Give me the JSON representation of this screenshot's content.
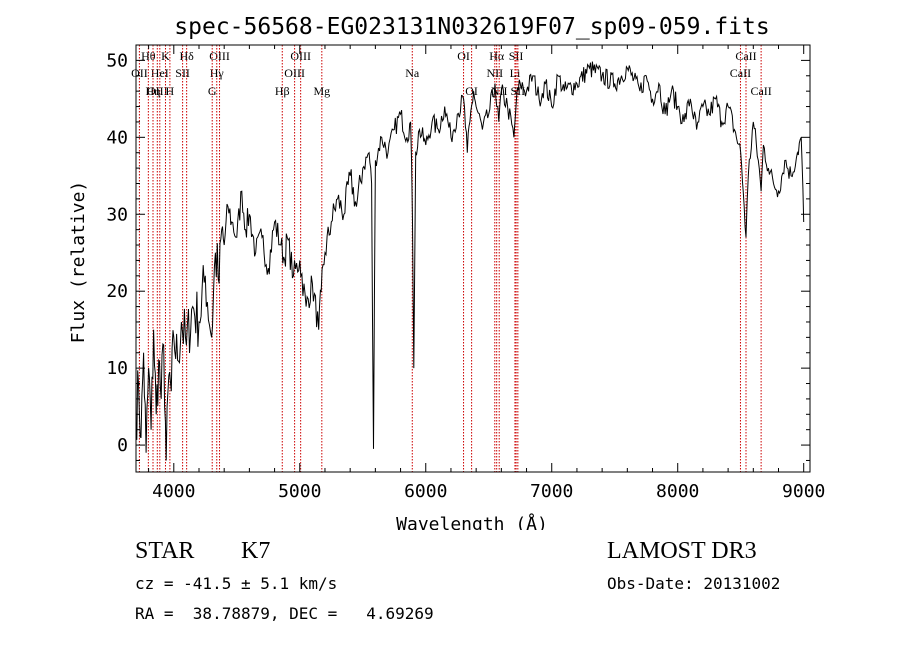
{
  "chart_data": {
    "type": "line",
    "title": "spec-56568-EG023131N032619F07_sp09-059.fits",
    "xlabel": "Wavelength (Å)",
    "ylabel": "Flux (relative)",
    "xlim": [
      3700,
      9050
    ],
    "ylim": [
      -3.5,
      52
    ],
    "xticks": [
      4000,
      5000,
      6000,
      7000,
      8000,
      9000
    ],
    "yticks": [
      0,
      10,
      20,
      30,
      40,
      50
    ],
    "grid": false,
    "series": [
      {
        "name": "spectrum",
        "x": [
          3700,
          3720,
          3740,
          3760,
          3780,
          3800,
          3820,
          3840,
          3860,
          3880,
          3900,
          3920,
          3940,
          3960,
          3980,
          4000,
          4030,
          4060,
          4100,
          4150,
          4200,
          4250,
          4300,
          4330,
          4360,
          4380,
          4400,
          4430,
          4460,
          4500,
          4540,
          4570,
          4600,
          4650,
          4700,
          4750,
          4800,
          4850,
          4880,
          4900,
          4950,
          5000,
          5050,
          5100,
          5150,
          5170,
          5200,
          5250,
          5300,
          5350,
          5400,
          5450,
          5500,
          5550,
          5570,
          5585,
          5600,
          5650,
          5700,
          5750,
          5800,
          5850,
          5880,
          5895,
          5905,
          5920,
          5950,
          6000,
          6050,
          6100,
          6150,
          6200,
          6250,
          6300,
          6330,
          6350,
          6380,
          6400,
          6450,
          6500,
          6550,
          6563,
          6580,
          6600,
          6650,
          6700,
          6720,
          6750,
          6800,
          6850,
          6900,
          6950,
          7000,
          7050,
          7100,
          7200,
          7300,
          7400,
          7500,
          7600,
          7700,
          7750,
          7800,
          7850,
          7900,
          7950,
          8000,
          8050,
          8100,
          8150,
          8200,
          8250,
          8300,
          8350,
          8400,
          8450,
          8500,
          8520,
          8542,
          8560,
          8600,
          8640,
          8662,
          8680,
          8720,
          8760,
          8800,
          8850,
          8900,
          8950,
          8980,
          9000
        ],
        "y": [
          3,
          8,
          1,
          12,
          -1,
          10,
          2,
          15,
          4,
          11,
          6,
          13,
          -2,
          9,
          7,
          14,
          11,
          16,
          13,
          18,
          16,
          22,
          14,
          25,
          21,
          28,
          26,
          31,
          29,
          27,
          33,
          28,
          30,
          25,
          27,
          23,
          29,
          26,
          24,
          27,
          22,
          24,
          18,
          21,
          15,
          20,
          25,
          29,
          32,
          30,
          35,
          31,
          36,
          38,
          34,
          -0.5,
          37,
          40,
          38,
          41,
          43,
          40,
          42,
          29,
          10,
          38,
          41,
          39,
          42,
          41,
          44,
          40,
          43,
          45,
          38,
          42,
          46,
          44,
          41,
          43,
          47,
          44,
          42,
          46,
          44,
          40,
          45,
          47,
          46,
          48,
          45,
          47,
          44,
          48,
          46,
          47,
          49,
          48,
          47,
          49,
          46,
          48,
          45,
          47,
          43,
          46,
          44,
          42,
          45,
          41,
          44,
          43,
          45,
          42,
          44,
          41,
          38,
          33,
          27,
          35,
          42,
          37,
          33,
          39,
          36,
          34,
          33,
          37,
          35,
          38,
          40,
          29
        ]
      }
    ],
    "line_markers": [
      {
        "label": "Hθ",
        "wavelength": 3798,
        "row": 1
      },
      {
        "label": "OII",
        "wavelength": 3727,
        "row": 2
      },
      {
        "label": "OIII",
        "wavelength": 3869,
        "row": 3
      },
      {
        "label": "K",
        "wavelength": 3934,
        "row": 1
      },
      {
        "label": "HeI",
        "wavelength": 3889,
        "row": 2
      },
      {
        "label": "Hη",
        "wavelength": 3835,
        "row": 3
      },
      {
        "label": "Hδ",
        "wavelength": 4102,
        "row": 1
      },
      {
        "label": "SII",
        "wavelength": 4070,
        "row": 2
      },
      {
        "label": "H",
        "wavelength": 3969,
        "row": 3
      },
      {
        "label": "OIII",
        "wavelength": 4363,
        "row": 1
      },
      {
        "label": "Hγ",
        "wavelength": 4341,
        "row": 2
      },
      {
        "label": "G",
        "wavelength": 4305,
        "row": 3
      },
      {
        "label": "OIII",
        "wavelength": 5007,
        "row": 1
      },
      {
        "label": "OIII",
        "wavelength": 4959,
        "row": 2
      },
      {
        "label": "Hβ",
        "wavelength": 4861,
        "row": 3
      },
      {
        "label": "Mg",
        "wavelength": 5175,
        "row": 3
      },
      {
        "label": "Na",
        "wavelength": 5893,
        "row": 2
      },
      {
        "label": "OI",
        "wavelength": 6300,
        "row": 1
      },
      {
        "label": "OI",
        "wavelength": 6364,
        "row": 3
      },
      {
        "label": "Hα",
        "wavelength": 6563,
        "row": 1
      },
      {
        "label": "SII",
        "wavelength": 6717,
        "row": 1
      },
      {
        "label": "NII",
        "wavelength": 6548,
        "row": 2
      },
      {
        "label": "Li",
        "wavelength": 6708,
        "row": 2
      },
      {
        "label": "NII",
        "wavelength": 6583,
        "row": 3
      },
      {
        "label": "SII",
        "wavelength": 6731,
        "row": 3
      },
      {
        "label": "CaII",
        "wavelength": 8542,
        "row": 1
      },
      {
        "label": "CaII",
        "wavelength": 8498,
        "row": 2
      },
      {
        "label": "CaII",
        "wavelength": 8662,
        "row": 3
      }
    ]
  },
  "info": {
    "object_class": "STAR",
    "subclass": "K7",
    "survey": "LAMOST DR3",
    "cz_line": "cz = -41.5 ± 5.1 km/s",
    "obs_date_line": "Obs-Date: 20131002",
    "coords_line": "RA =  38.78879, DEC =   4.69269"
  },
  "colors": {
    "background": "#ffffff",
    "spectrum": "#000000",
    "marker_line": "#cc0000",
    "text": "#000000"
  }
}
